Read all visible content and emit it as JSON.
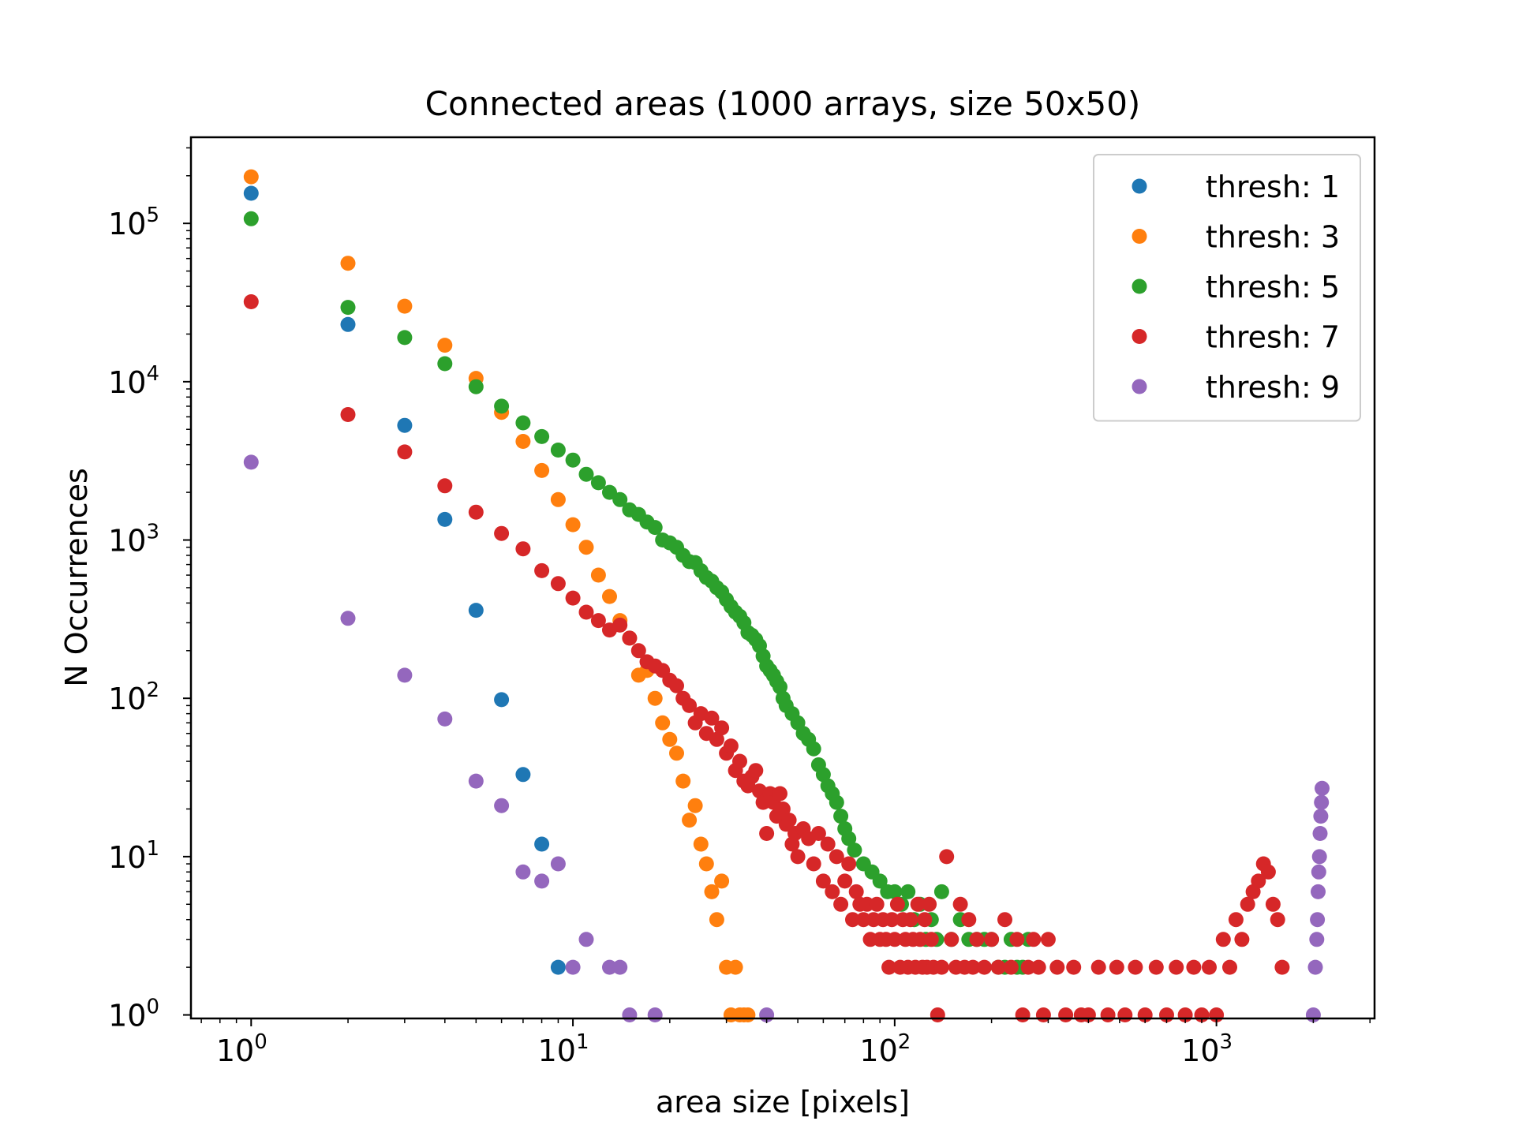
{
  "chart_data": {
    "type": "scatter",
    "title": "Connected areas (1000 arrays, size 50x50)",
    "xlabel": "area size [pixels]",
    "ylabel": "N Occurrences",
    "xscale": "log",
    "yscale": "log",
    "xlim": [
      0.65,
      3100
    ],
    "ylim": [
      0.95,
      350000
    ],
    "grid": false,
    "legend_position": "top-right",
    "x_ticks": [
      {
        "value": 1,
        "base": "10",
        "exp": "0"
      },
      {
        "value": 10,
        "base": "10",
        "exp": "1"
      },
      {
        "value": 100,
        "base": "10",
        "exp": "2"
      },
      {
        "value": 1000,
        "base": "10",
        "exp": "3"
      }
    ],
    "y_ticks": [
      {
        "value": 1,
        "base": "10",
        "exp": "0"
      },
      {
        "value": 10,
        "base": "10",
        "exp": "1"
      },
      {
        "value": 100,
        "base": "10",
        "exp": "2"
      },
      {
        "value": 1000,
        "base": "10",
        "exp": "3"
      },
      {
        "value": 10000,
        "base": "10",
        "exp": "4"
      },
      {
        "value": 100000,
        "base": "10",
        "exp": "5"
      }
    ],
    "series": [
      {
        "name": "thresh: 1",
        "color": "#1f77b4",
        "points": [
          [
            1,
            155000
          ],
          [
            2,
            23000
          ],
          [
            3,
            5300
          ],
          [
            4,
            1350
          ],
          [
            5,
            360
          ],
          [
            6,
            98
          ],
          [
            7,
            33
          ],
          [
            8,
            12
          ],
          [
            9,
            2
          ]
        ]
      },
      {
        "name": "thresh: 3",
        "color": "#ff7f0e",
        "points": [
          [
            1,
            197000
          ],
          [
            2,
            56000
          ],
          [
            3,
            30000
          ],
          [
            4,
            17000
          ],
          [
            5,
            10500
          ],
          [
            6,
            6400
          ],
          [
            7,
            4200
          ],
          [
            8,
            2750
          ],
          [
            9,
            1800
          ],
          [
            10,
            1250
          ],
          [
            11,
            900
          ],
          [
            12,
            600
          ],
          [
            13,
            440
          ],
          [
            14,
            310
          ],
          [
            15,
            240
          ],
          [
            16,
            140
          ],
          [
            17,
            150
          ],
          [
            18,
            100
          ],
          [
            19,
            70
          ],
          [
            20,
            55
          ],
          [
            21,
            45
          ],
          [
            22,
            30
          ],
          [
            23,
            17
          ],
          [
            24,
            21
          ],
          [
            25,
            12
          ],
          [
            26,
            9
          ],
          [
            27,
            6
          ],
          [
            28,
            4
          ],
          [
            29,
            7
          ],
          [
            30,
            2
          ],
          [
            31,
            1
          ],
          [
            32,
            2
          ],
          [
            33,
            1
          ],
          [
            34,
            1
          ],
          [
            35,
            1
          ]
        ]
      },
      {
        "name": "thresh: 5",
        "color": "#2ca02c",
        "points": [
          [
            1,
            107000
          ],
          [
            2,
            29500
          ],
          [
            3,
            19000
          ],
          [
            4,
            13000
          ],
          [
            5,
            9300
          ],
          [
            6,
            7000
          ],
          [
            7,
            5500
          ],
          [
            8,
            4500
          ],
          [
            9,
            3700
          ],
          [
            10,
            3200
          ],
          [
            11,
            2600
          ],
          [
            12,
            2300
          ],
          [
            13,
            2000
          ],
          [
            14,
            1800
          ],
          [
            15,
            1550
          ],
          [
            16,
            1450
          ],
          [
            17,
            1300
          ],
          [
            18,
            1200
          ],
          [
            19,
            1000
          ],
          [
            20,
            960
          ],
          [
            21,
            900
          ],
          [
            22,
            800
          ],
          [
            23,
            730
          ],
          [
            24,
            720
          ],
          [
            25,
            640
          ],
          [
            26,
            580
          ],
          [
            27,
            550
          ],
          [
            28,
            500
          ],
          [
            29,
            470
          ],
          [
            30,
            420
          ],
          [
            31,
            380
          ],
          [
            32,
            350
          ],
          [
            33,
            330
          ],
          [
            34,
            300
          ],
          [
            35,
            260
          ],
          [
            36,
            250
          ],
          [
            37,
            235
          ],
          [
            38,
            215
          ],
          [
            39,
            185
          ],
          [
            40,
            160
          ],
          [
            41,
            150
          ],
          [
            42,
            140
          ],
          [
            43,
            128
          ],
          [
            44,
            118
          ],
          [
            45,
            100
          ],
          [
            46,
            90
          ],
          [
            48,
            80
          ],
          [
            50,
            70
          ],
          [
            52,
            60
          ],
          [
            54,
            55
          ],
          [
            56,
            48
          ],
          [
            58,
            38
          ],
          [
            60,
            33
          ],
          [
            62,
            28
          ],
          [
            64,
            25
          ],
          [
            66,
            22
          ],
          [
            68,
            18
          ],
          [
            70,
            15
          ],
          [
            72,
            13
          ],
          [
            75,
            11
          ],
          [
            80,
            9
          ],
          [
            85,
            8
          ],
          [
            90,
            7
          ],
          [
            95,
            6
          ],
          [
            100,
            6
          ],
          [
            105,
            5
          ],
          [
            110,
            6
          ],
          [
            115,
            4
          ],
          [
            120,
            5
          ],
          [
            125,
            3
          ],
          [
            130,
            4
          ],
          [
            135,
            3
          ],
          [
            140,
            6
          ],
          [
            150,
            3
          ],
          [
            160,
            4
          ],
          [
            170,
            3
          ],
          [
            180,
            3
          ],
          [
            190,
            3
          ],
          [
            200,
            3
          ],
          [
            210,
            2
          ],
          [
            220,
            2
          ],
          [
            230,
            3
          ],
          [
            240,
            2
          ],
          [
            250,
            2
          ],
          [
            260,
            3
          ]
        ]
      },
      {
        "name": "thresh: 7",
        "color": "#d62728",
        "points": [
          [
            1,
            32000
          ],
          [
            2,
            6200
          ],
          [
            3,
            3600
          ],
          [
            4,
            2200
          ],
          [
            5,
            1500
          ],
          [
            6,
            1100
          ],
          [
            7,
            880
          ],
          [
            8,
            640
          ],
          [
            9,
            530
          ],
          [
            10,
            430
          ],
          [
            11,
            350
          ],
          [
            12,
            310
          ],
          [
            13,
            270
          ],
          [
            14,
            290
          ],
          [
            15,
            240
          ],
          [
            16,
            200
          ],
          [
            17,
            170
          ],
          [
            18,
            160
          ],
          [
            19,
            150
          ],
          [
            20,
            130
          ],
          [
            21,
            120
          ],
          [
            22,
            100
          ],
          [
            23,
            90
          ],
          [
            24,
            70
          ],
          [
            25,
            80
          ],
          [
            26,
            60
          ],
          [
            27,
            75
          ],
          [
            28,
            55
          ],
          [
            29,
            65
          ],
          [
            30,
            45
          ],
          [
            31,
            50
          ],
          [
            32,
            35
          ],
          [
            33,
            40
          ],
          [
            34,
            30
          ],
          [
            35,
            28
          ],
          [
            36,
            32
          ],
          [
            37,
            35
          ],
          [
            38,
            26
          ],
          [
            39,
            22
          ],
          [
            40,
            14
          ],
          [
            41,
            25
          ],
          [
            42,
            22
          ],
          [
            43,
            18
          ],
          [
            44,
            25
          ],
          [
            45,
            20
          ],
          [
            46,
            16
          ],
          [
            47,
            17
          ],
          [
            48,
            12
          ],
          [
            49,
            14
          ],
          [
            50,
            10
          ],
          [
            52,
            15
          ],
          [
            54,
            13
          ],
          [
            56,
            9
          ],
          [
            58,
            14
          ],
          [
            60,
            7
          ],
          [
            62,
            12
          ],
          [
            64,
            6
          ],
          [
            66,
            10
          ],
          [
            68,
            5
          ],
          [
            70,
            7
          ],
          [
            72,
            9
          ],
          [
            74,
            4
          ],
          [
            76,
            6
          ],
          [
            78,
            5
          ],
          [
            80,
            4
          ],
          [
            82,
            5
          ],
          [
            84,
            3
          ],
          [
            86,
            4
          ],
          [
            88,
            5
          ],
          [
            90,
            3
          ],
          [
            92,
            4
          ],
          [
            94,
            3
          ],
          [
            96,
            2
          ],
          [
            98,
            4
          ],
          [
            100,
            3
          ],
          [
            102,
            5
          ],
          [
            104,
            2
          ],
          [
            106,
            4
          ],
          [
            108,
            3
          ],
          [
            110,
            2
          ],
          [
            112,
            4
          ],
          [
            114,
            3
          ],
          [
            116,
            2
          ],
          [
            118,
            5
          ],
          [
            120,
            3
          ],
          [
            122,
            2
          ],
          [
            124,
            4
          ],
          [
            126,
            2
          ],
          [
            128,
            5
          ],
          [
            130,
            3
          ],
          [
            132,
            2
          ],
          [
            136,
            1
          ],
          [
            140,
            2
          ],
          [
            145,
            10
          ],
          [
            150,
            3
          ],
          [
            155,
            2
          ],
          [
            160,
            5
          ],
          [
            165,
            2
          ],
          [
            170,
            4
          ],
          [
            175,
            2
          ],
          [
            180,
            3
          ],
          [
            190,
            2
          ],
          [
            200,
            3
          ],
          [
            210,
            2
          ],
          [
            220,
            4
          ],
          [
            230,
            2
          ],
          [
            240,
            3
          ],
          [
            250,
            1
          ],
          [
            260,
            2
          ],
          [
            270,
            3
          ],
          [
            280,
            2
          ],
          [
            290,
            1
          ],
          [
            300,
            3
          ],
          [
            320,
            2
          ],
          [
            340,
            1
          ],
          [
            360,
            2
          ],
          [
            380,
            1
          ],
          [
            400,
            1
          ],
          [
            430,
            2
          ],
          [
            460,
            1
          ],
          [
            490,
            2
          ],
          [
            520,
            1
          ],
          [
            560,
            2
          ],
          [
            600,
            1
          ],
          [
            650,
            2
          ],
          [
            700,
            1
          ],
          [
            750,
            2
          ],
          [
            800,
            1
          ],
          [
            850,
            2
          ],
          [
            900,
            1
          ],
          [
            950,
            2
          ],
          [
            1000,
            1
          ],
          [
            1050,
            3
          ],
          [
            1100,
            2
          ],
          [
            1150,
            4
          ],
          [
            1200,
            3
          ],
          [
            1250,
            5
          ],
          [
            1300,
            6
          ],
          [
            1350,
            7
          ],
          [
            1400,
            9
          ],
          [
            1450,
            8
          ],
          [
            1500,
            5
          ],
          [
            1550,
            4
          ],
          [
            1600,
            2
          ]
        ]
      },
      {
        "name": "thresh: 9",
        "color": "#9467bd",
        "points": [
          [
            1,
            3100
          ],
          [
            2,
            320
          ],
          [
            3,
            140
          ],
          [
            4,
            74
          ],
          [
            5,
            30
          ],
          [
            6,
            21
          ],
          [
            7,
            8
          ],
          [
            8,
            7
          ],
          [
            9,
            9
          ],
          [
            10,
            2
          ],
          [
            11,
            3
          ],
          [
            13,
            2
          ],
          [
            14,
            2
          ],
          [
            15,
            1
          ],
          [
            18,
            1
          ],
          [
            40,
            1
          ],
          [
            2000,
            1
          ],
          [
            2030,
            2
          ],
          [
            2050,
            3
          ],
          [
            2060,
            4
          ],
          [
            2070,
            6
          ],
          [
            2080,
            8
          ],
          [
            2090,
            10
          ],
          [
            2100,
            14
          ],
          [
            2110,
            18
          ],
          [
            2120,
            22
          ],
          [
            2130,
            27
          ]
        ]
      }
    ]
  }
}
